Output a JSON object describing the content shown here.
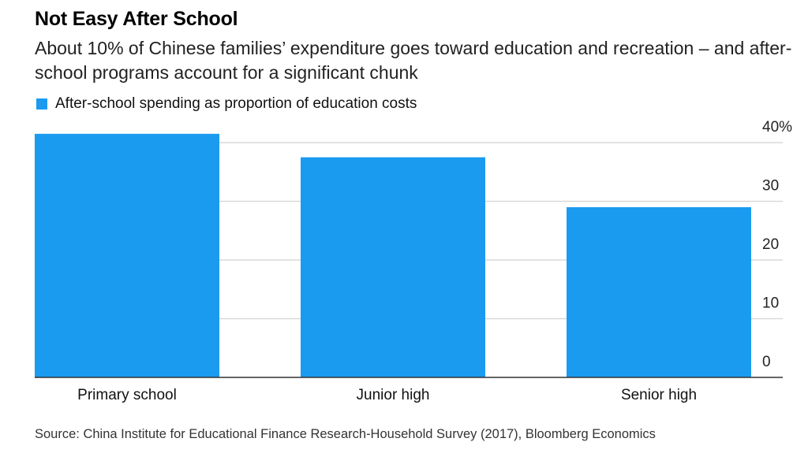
{
  "header": {
    "title": "Not Easy After School",
    "subtitle": "About 10% of Chinese families’ expenditure goes toward education and recreation – and after-school programs account for a significant chunk"
  },
  "legend": {
    "label": "After-school spending as proportion of education costs",
    "color": "#1a9bf0"
  },
  "chart_data": {
    "type": "bar",
    "categories": [
      "Primary school",
      "Junior high",
      "Senior high"
    ],
    "series": [
      {
        "name": "After-school spending as proportion of education costs",
        "values": [
          41.5,
          37.5,
          29
        ]
      }
    ],
    "ylim": [
      0,
      40
    ],
    "yticks": [
      0,
      10,
      20,
      30,
      40
    ],
    "ytick_labels": [
      "0",
      "10",
      "20",
      "30",
      "40%"
    ],
    "grid": true,
    "legend_position": "top-left",
    "bar_color": "#1a9bf0"
  },
  "footer": {
    "source": "Source: China Institute for Educational Finance Research-Household Survey (2017), Bloomberg Economics"
  }
}
